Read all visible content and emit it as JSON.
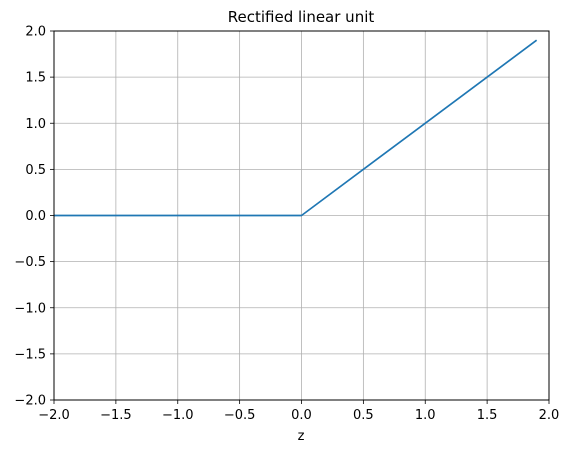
{
  "chart_data": {
    "type": "line",
    "title": "Rectified linear unit",
    "xlabel": "z",
    "ylabel": "",
    "xlim": [
      -2.0,
      2.0
    ],
    "ylim": [
      -2.0,
      2.0
    ],
    "x_ticks": [
      -2.0,
      -1.5,
      -1.0,
      -0.5,
      0.0,
      0.5,
      1.0,
      1.5,
      2.0
    ],
    "y_ticks": [
      -2.0,
      -1.5,
      -1.0,
      -0.5,
      0.0,
      0.5,
      1.0,
      1.5,
      2.0
    ],
    "x_tick_labels": [
      "−2.0",
      "−1.5",
      "−1.0",
      "−0.5",
      "0.0",
      "0.5",
      "1.0",
      "1.5",
      "2.0"
    ],
    "y_tick_labels": [
      "−2.0",
      "−1.5",
      "−1.0",
      "−0.5",
      "0.0",
      "0.5",
      "1.0",
      "1.5",
      "2.0"
    ],
    "grid": true,
    "series": [
      {
        "color": "#1f77b4",
        "x": [
          -2.0,
          0.0,
          1.9
        ],
        "y": [
          0.0,
          0.0,
          1.9
        ]
      }
    ]
  }
}
